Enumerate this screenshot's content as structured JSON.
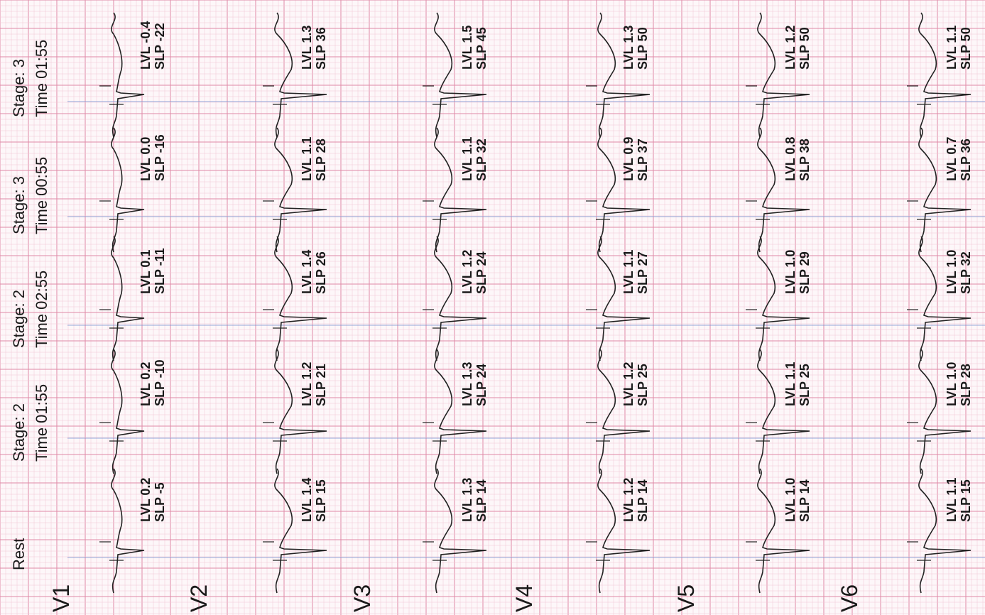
{
  "stages": [
    {
      "stage": "Rest",
      "time": ""
    },
    {
      "stage": "Stage: 2",
      "time": "Time 01:55"
    },
    {
      "stage": "Stage: 2",
      "time": "Time 02:55"
    },
    {
      "stage": "Stage: 3",
      "time": "Time 00:55"
    },
    {
      "stage": "Stage: 3",
      "time": "Time 01:55"
    }
  ],
  "leads": [
    {
      "name": "V1",
      "meas": [
        {
          "lvl": "LVL 0.2",
          "slp": "SLP -5"
        },
        {
          "lvl": "LVL 0.2",
          "slp": "SLP -10"
        },
        {
          "lvl": "LVL 0.1",
          "slp": "SLP -11"
        },
        {
          "lvl": "LVL 0.0",
          "slp": "SLP -16"
        },
        {
          "lvl": "LVL -0.4",
          "slp": "SLP -22"
        }
      ]
    },
    {
      "name": "V2",
      "meas": [
        {
          "lvl": "LVL 1.4",
          "slp": "SLP 15"
        },
        {
          "lvl": "LVL 1.2",
          "slp": "SLP 21"
        },
        {
          "lvl": "LVL 1.4",
          "slp": "SLP 26"
        },
        {
          "lvl": "LVL 1.1",
          "slp": "SLP 28"
        },
        {
          "lvl": "LVL 1.3",
          "slp": "SLP 36"
        }
      ]
    },
    {
      "name": "V3",
      "meas": [
        {
          "lvl": "LVL 1.3",
          "slp": "SLP 14"
        },
        {
          "lvl": "LVL 1.3",
          "slp": "SLP 24"
        },
        {
          "lvl": "LVL 1.2",
          "slp": "SLP 24"
        },
        {
          "lvl": "LVL 1.1",
          "slp": "SLP 32"
        },
        {
          "lvl": "LVL 1.5",
          "slp": "SLP 45"
        }
      ]
    },
    {
      "name": "V4",
      "meas": [
        {
          "lvl": "LVL 1.2",
          "slp": "SLP 14"
        },
        {
          "lvl": "LVL 1.2",
          "slp": "SLP 25"
        },
        {
          "lvl": "LVL 1.1",
          "slp": "SLP 27"
        },
        {
          "lvl": "LVL 0.9",
          "slp": "SLP 37"
        },
        {
          "lvl": "LVL 1.3",
          "slp": "SLP 50"
        }
      ]
    },
    {
      "name": "V5",
      "meas": [
        {
          "lvl": "LVL 1.0",
          "slp": "SLP 14"
        },
        {
          "lvl": "LVL 1.1",
          "slp": "SLP 25"
        },
        {
          "lvl": "LVL 1.0",
          "slp": "SLP 29"
        },
        {
          "lvl": "LVL 0.8",
          "slp": "SLP 38"
        },
        {
          "lvl": "LVL 1.2",
          "slp": "SLP 50"
        }
      ]
    },
    {
      "name": "V6",
      "meas": [
        {
          "lvl": "LVL 1.1",
          "slp": "SLP 15"
        },
        {
          "lvl": "LVL 1.0",
          "slp": "SLP 28"
        },
        {
          "lvl": "LVL 1.0",
          "slp": "SLP 32"
        },
        {
          "lvl": "LVL 0.7",
          "slp": "SLP 36"
        },
        {
          "lvl": "LVL 1.1",
          "slp": "SLP 50"
        }
      ]
    }
  ],
  "colors": {
    "paper": "#fdf7f9",
    "grid_minor": "#f0c6d4",
    "grid_major": "#e08aa6",
    "trace": "#222222",
    "ref_line": "#6f8fd0"
  }
}
